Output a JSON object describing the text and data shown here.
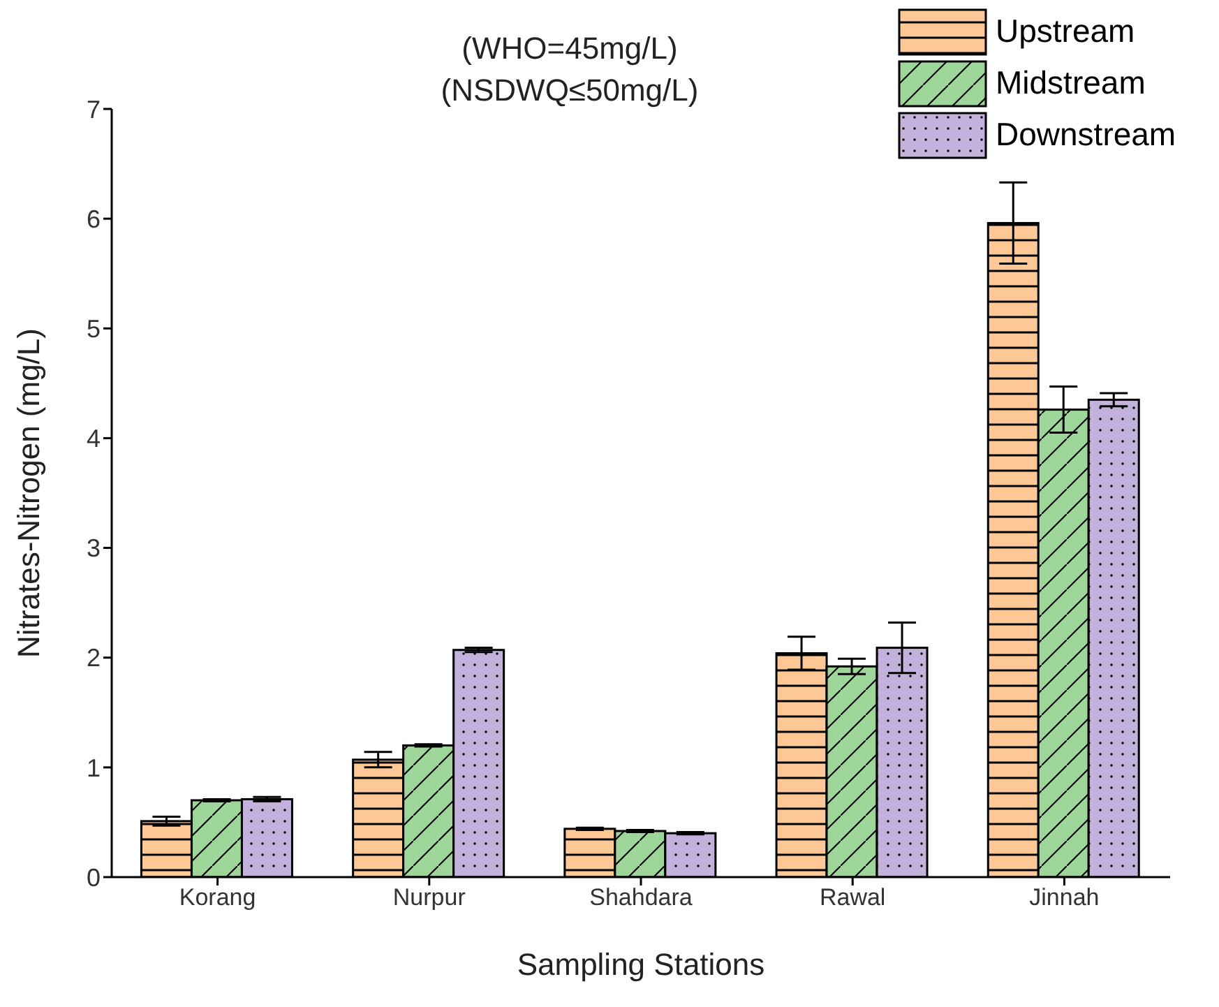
{
  "chart_data": {
    "type": "bar",
    "xlabel": "Sampling Stations",
    "ylabel": "Nitrates-Nitrogen (mg/L)",
    "annotations": [
      "(WHO=45mg/L)",
      "(NSDWQ≤50mg/L)"
    ],
    "categories": [
      "Korang",
      "Nurpur",
      "Shahdara",
      "Rawal",
      "Jinnah"
    ],
    "series": [
      {
        "name": "Upstream",
        "color": "#fdc896",
        "values": [
          0.51,
          1.07,
          0.44,
          2.04,
          5.96
        ],
        "errors": [
          0.04,
          0.07,
          0.01,
          0.15,
          0.37
        ]
      },
      {
        "name": "Midstream",
        "color": "#9ed69a",
        "values": [
          0.7,
          1.2,
          0.42,
          1.92,
          4.26
        ],
        "errors": [
          0.01,
          0.01,
          0.01,
          0.07,
          0.21
        ]
      },
      {
        "name": "Downstream",
        "color": "#c3b2dc",
        "values": [
          0.71,
          2.07,
          0.4,
          2.09,
          4.35
        ],
        "errors": [
          0.02,
          0.02,
          0.01,
          0.23,
          0.06
        ]
      }
    ],
    "ylim": [
      0,
      7
    ],
    "yticks": [
      0,
      1,
      2,
      3,
      4,
      5,
      6,
      7
    ],
    "grid": false,
    "legend": "top right"
  }
}
